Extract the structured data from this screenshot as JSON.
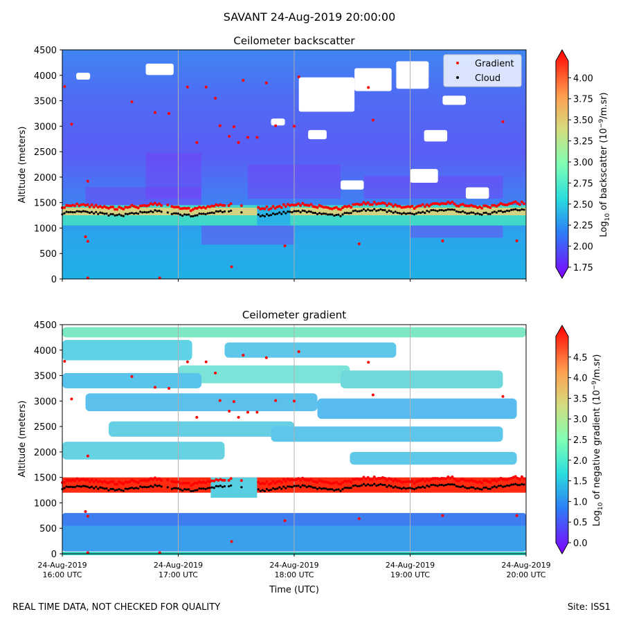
{
  "figure": {
    "suptitle": "SAVANT 24-Aug-2019 20:00:00",
    "footer_left": "REAL TIME DATA, NOT CHECKED FOR QUALITY",
    "footer_right": "Site: ISS1"
  },
  "chart_data": [
    {
      "type": "heatmap",
      "title": "Ceilometer backscatter",
      "ylabel": "Altitude (meters)",
      "xlabel": "",
      "ylim": [
        0,
        4500
      ],
      "yticks": [
        "0",
        "500",
        "1000",
        "1500",
        "2000",
        "2500",
        "3000",
        "3500",
        "4000",
        "4500"
      ],
      "xticks": [
        "",
        "",
        "",
        "",
        ""
      ],
      "legend": {
        "placement": "top-right",
        "entries": [
          "Gradient",
          "Cloud"
        ]
      },
      "colorbar": {
        "label_prefix": "Log",
        "label_sub": "10",
        "label_mid": " of backscatter (10",
        "label_sup": "−9",
        "label_suffix": "/m.sr)",
        "range": [
          1.75,
          4.2
        ],
        "ticks": [
          "1.75",
          "2.00",
          "2.25",
          "2.50",
          "2.75",
          "3.00",
          "3.25",
          "3.50",
          "3.75",
          "4.00"
        ]
      }
    },
    {
      "type": "heatmap",
      "title": "Ceilometer gradient",
      "ylabel": "Altitude (meters)",
      "xlabel": "Time (UTC)",
      "ylim": [
        0,
        4500
      ],
      "yticks": [
        "0",
        "500",
        "1000",
        "1500",
        "2000",
        "2500",
        "3000",
        "3500",
        "4000",
        "4500"
      ],
      "xticks": [
        [
          "24-Aug-2019",
          "16:00 UTC"
        ],
        [
          "24-Aug-2019",
          "17:00 UTC"
        ],
        [
          "24-Aug-2019",
          "18:00 UTC"
        ],
        [
          "24-Aug-2019",
          "19:00 UTC"
        ],
        [
          "24-Aug-2019",
          "20:00 UTC"
        ]
      ],
      "colorbar": {
        "label_prefix": "Log",
        "label_sub": "10",
        "label_mid": " of negative gradient (10",
        "label_sup": "−9",
        "label_suffix": "/m.sr)",
        "range": [
          0,
          5.0
        ],
        "ticks": [
          "0.0",
          "0.5",
          "1.0",
          "1.5",
          "2.0",
          "2.5",
          "3.0",
          "3.5",
          "4.0",
          "4.5"
        ]
      }
    }
  ],
  "colors": {
    "gradient": "#ff0000",
    "cloud": "#000000",
    "grid": "#b0b0b0"
  }
}
